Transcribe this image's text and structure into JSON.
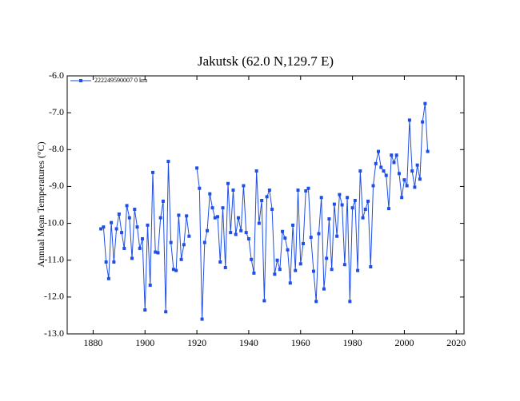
{
  "chart_data": {
    "type": "line",
    "title": "Jakutsk (62.0 N,129.7 E)",
    "y_label": "Annual Mean Temperatures (°C)",
    "xlim": [
      1870,
      2023
    ],
    "ylim": [
      -13,
      -6
    ],
    "xticks": [
      1880,
      1900,
      1920,
      1940,
      1960,
      1980,
      2000,
      2020
    ],
    "yticks": [
      {
        "value": -13,
        "label": "-13.0"
      },
      {
        "value": -12,
        "label": "-12.0"
      },
      {
        "value": -11,
        "label": "-11.0"
      },
      {
        "value": -10,
        "label": "-10.0"
      },
      {
        "value": -9,
        "label": "-9.0"
      },
      {
        "value": -8,
        "label": "-8.0"
      },
      {
        "value": -7,
        "label": "-7.0"
      },
      {
        "value": -6,
        "label": "-6.0"
      }
    ],
    "legend": "top-left",
    "x": [
      1883,
      1884,
      1885,
      1886,
      1887,
      1888,
      1889,
      1890,
      1891,
      1892,
      1893,
      1894,
      1895,
      1896,
      1897,
      1898,
      1899,
      1900,
      1901,
      1902,
      1903,
      1904,
      1905,
      1906,
      1907,
      1908,
      1909,
      1910,
      1911,
      1912,
      1913,
      1914,
      1915,
      1916,
      1917,
      1918,
      1919,
      1920,
      1921,
      1922,
      1923,
      1924,
      1925,
      1926,
      1927,
      1928,
      1929,
      1930,
      1931,
      1932,
      1933,
      1934,
      1935,
      1936,
      1937,
      1938,
      1939,
      1940,
      1941,
      1942,
      1943,
      1944,
      1945,
      1946,
      1947,
      1948,
      1949,
      1950,
      1951,
      1952,
      1953,
      1954,
      1955,
      1956,
      1957,
      1958,
      1959,
      1960,
      1961,
      1962,
      1963,
      1964,
      1965,
      1966,
      1967,
      1968,
      1969,
      1970,
      1971,
      1972,
      1973,
      1974,
      1975,
      1976,
      1977,
      1978,
      1979,
      1980,
      1981,
      1982,
      1983,
      1984,
      1985,
      1986,
      1987,
      1988,
      1989,
      1990,
      1991,
      1992,
      1993,
      1994,
      1995,
      1996,
      1997,
      1998,
      1999,
      2000,
      2001,
      2002,
      2003,
      2004,
      2005,
      2006,
      2007,
      2008,
      2009
    ],
    "series": [
      {
        "name": "222249590007  0 km",
        "color": "#1f4ee6",
        "values": [
          -10.15,
          -10.1,
          -11.05,
          -11.5,
          -9.98,
          -11.05,
          -10.15,
          -9.75,
          -10.25,
          -10.68,
          -9.52,
          -9.85,
          -10.95,
          -9.62,
          -10.1,
          -10.68,
          -10.42,
          -12.35,
          -10.05,
          -11.68,
          -8.62,
          -10.78,
          -10.8,
          -9.85,
          -9.4,
          -12.4,
          -8.32,
          -10.52,
          -11.25,
          -11.28,
          -9.78,
          -10.98,
          -10.58,
          -9.8,
          -10.35,
          null,
          null,
          -8.5,
          -9.05,
          -12.6,
          -10.52,
          -10.2,
          -9.2,
          -9.58,
          -9.85,
          -9.82,
          -11.05,
          -9.58,
          -11.2,
          -8.92,
          -10.25,
          -9.1,
          -10.3,
          -9.85,
          -10.2,
          -8.98,
          -10.25,
          -10.42,
          -10.98,
          -11.35,
          -8.58,
          -10.0,
          -9.38,
          -12.1,
          -9.28,
          -9.1,
          -9.62,
          -11.38,
          -11.0,
          -11.25,
          -10.22,
          -10.4,
          -10.72,
          -11.62,
          -10.05,
          -11.28,
          -9.1,
          -11.1,
          -10.55,
          -9.12,
          -9.05,
          -10.38,
          -11.3,
          -12.12,
          -10.28,
          -9.3,
          -11.78,
          -10.95,
          -9.88,
          -11.25,
          -9.48,
          -10.35,
          -9.22,
          -9.5,
          -11.12,
          -9.3,
          -12.12,
          -9.58,
          -9.38,
          -11.28,
          -8.58,
          -9.85,
          -9.62,
          -9.4,
          -11.18,
          -8.98,
          -8.38,
          -8.05,
          -8.48,
          -8.58,
          -8.7,
          -9.6,
          -8.15,
          -8.35,
          -8.15,
          -8.65,
          -9.3,
          -8.82,
          -8.98,
          -7.2,
          -8.58,
          -9.02,
          -8.42,
          -8.8,
          -7.25,
          -6.75,
          -8.05
        ]
      }
    ]
  }
}
